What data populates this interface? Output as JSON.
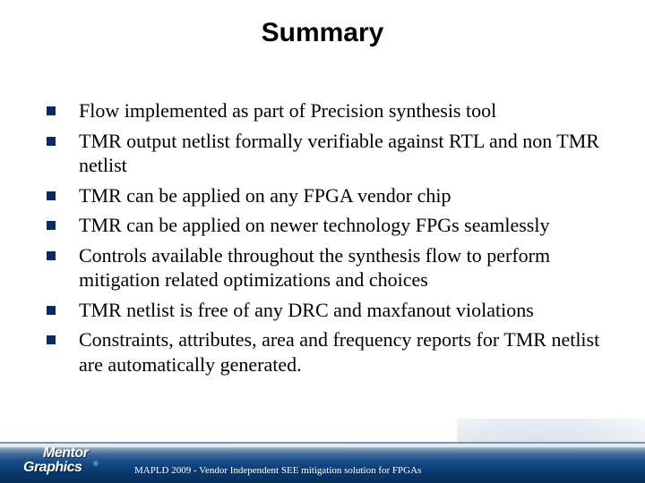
{
  "title": "Summary",
  "bullets": [
    "Flow implemented as part of Precision synthesis tool",
    "TMR output netlist formally verifiable against RTL and non TMR netlist",
    "TMR can be applied on any FPGA vendor chip",
    "TMR can be applied on newer technology FPGs seamlessly",
    "Controls available throughout the synthesis flow to perform mitigation related optimizations and choices",
    "TMR netlist is free of any DRC and maxfanout violations",
    "Constraints, attributes, area and frequency reports for TMR netlist are automatically generated."
  ],
  "logo": {
    "top": "Mentor",
    "bottom": "Graphics",
    "reg": "®"
  },
  "footer_text": "MAPLD 2009 - Vendor Independent SEE mitigation solution for FPGAs",
  "corner_watermark": "",
  "colors": {
    "bullet_marker": "#0a2a66",
    "title_text": "#000000",
    "body_text": "#000000",
    "footer_text": "#ffffff"
  }
}
